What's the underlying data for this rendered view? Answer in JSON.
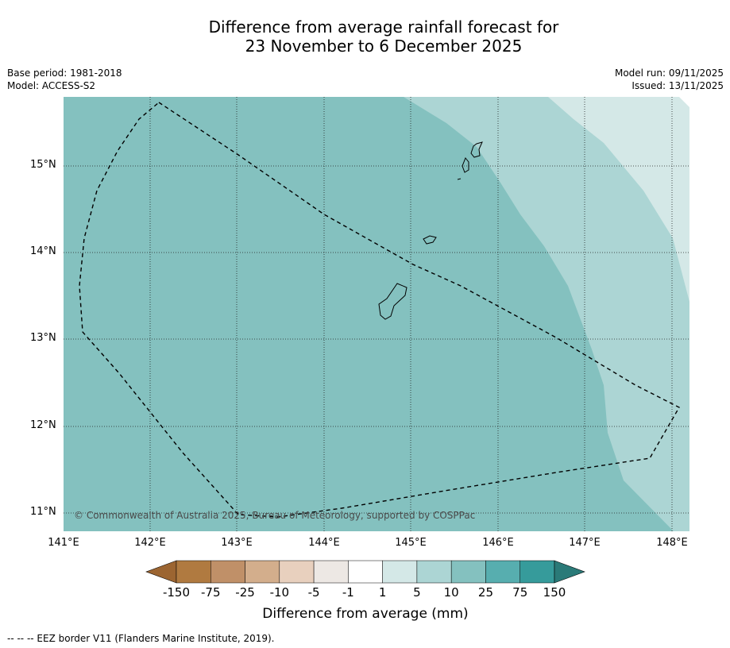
{
  "title_line1": "Difference from average rainfall forecast for",
  "title_line2": "23 November to 6 December 2025",
  "meta_left": {
    "base_period": "Base period: 1981-2018",
    "model": "Model: ACCESS-S2"
  },
  "meta_right": {
    "model_run": "Model run: 09/11/2025",
    "issued": "Issued: 13/11/2025"
  },
  "copyright": "© Commonwealth of Australia 2025, Bureau of Meteorology, supported by COSPPac",
  "lat_labels": [
    "15°N",
    "14°N",
    "13°N",
    "12°N",
    "11°N"
  ],
  "lon_labels": [
    "141°E",
    "142°E",
    "143°E",
    "144°E",
    "145°E",
    "146°E",
    "147°E",
    "148°E"
  ],
  "colorbar": {
    "label": "Difference from average (mm)",
    "ticks": [
      "-150",
      "-75",
      "-25",
      "-10",
      "-5",
      "-1",
      "1",
      "5",
      "10",
      "25",
      "75",
      "150"
    ],
    "colors": [
      "#9c6531",
      "#b07a40",
      "#c09068",
      "#d3ae8c",
      "#e8d0be",
      "#ede8e4",
      "#ffffff",
      "#d4e8e7",
      "#acd5d4",
      "#84c1bf",
      "#57aeaf",
      "#369b9b",
      "#2a7a78"
    ]
  },
  "footer_note": "--  --  -- EEZ border V11 (Flanders Marine Institute, 2019)."
}
